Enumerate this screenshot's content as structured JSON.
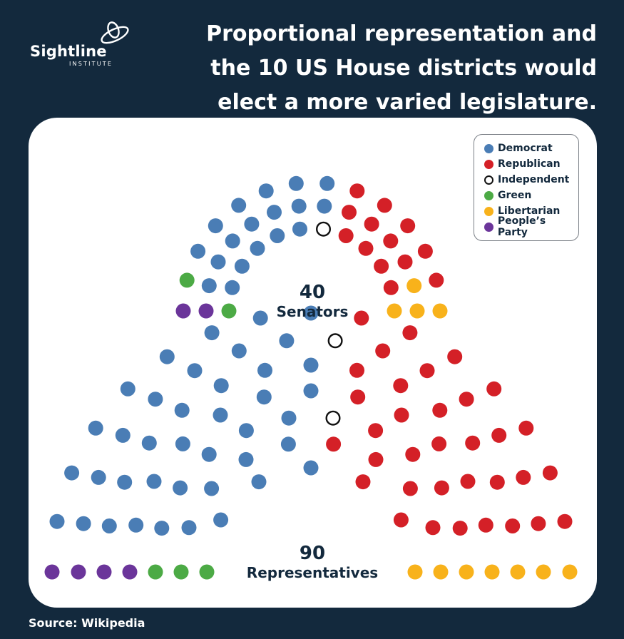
{
  "logo": {
    "name": "Sightline",
    "sub": "INSTITUTE"
  },
  "headline": "Proportional representation and the 10 US House districts would elect a more varied legislature.",
  "source": "Source: Wikipedia",
  "colors": {
    "background": "#13293d",
    "Democrat": "#4a7db5",
    "Republican": "#d42027",
    "Independent": "#ffffff",
    "Green": "#4caa45",
    "Libertarian": "#f8b21b",
    "People's Party": "#6b359a"
  },
  "legend": [
    {
      "party": "Democrat",
      "label": "Democrat"
    },
    {
      "party": "Republican",
      "label": "Republican"
    },
    {
      "party": "Independent",
      "label": "Independent"
    },
    {
      "party": "Green",
      "label": "Green"
    },
    {
      "party": "Libertarian",
      "label": "Libertarian"
    },
    {
      "party": "People's Party",
      "label": "People’s Party"
    }
  ],
  "chart_data": [
    {
      "type": "parliament",
      "total": "40",
      "label": "Senators",
      "seats": [
        {
          "party": "People's Party",
          "count": 2
        },
        {
          "party": "Green",
          "count": 2
        },
        {
          "party": "Democrat",
          "count": 18
        },
        {
          "party": "Independent",
          "count": 1
        },
        {
          "party": "Republican",
          "count": 13
        },
        {
          "party": "Libertarian",
          "count": 4
        }
      ]
    },
    {
      "type": "parliament",
      "total": "90",
      "label": "Representatives",
      "seats": [
        {
          "party": "People's Party",
          "count": 4
        },
        {
          "party": "Green",
          "count": 3
        },
        {
          "party": "Democrat",
          "count": 40
        },
        {
          "party": "Independent",
          "count": 2
        },
        {
          "party": "Republican",
          "count": 34
        },
        {
          "party": "Libertarian",
          "count": 7
        }
      ]
    }
  ]
}
